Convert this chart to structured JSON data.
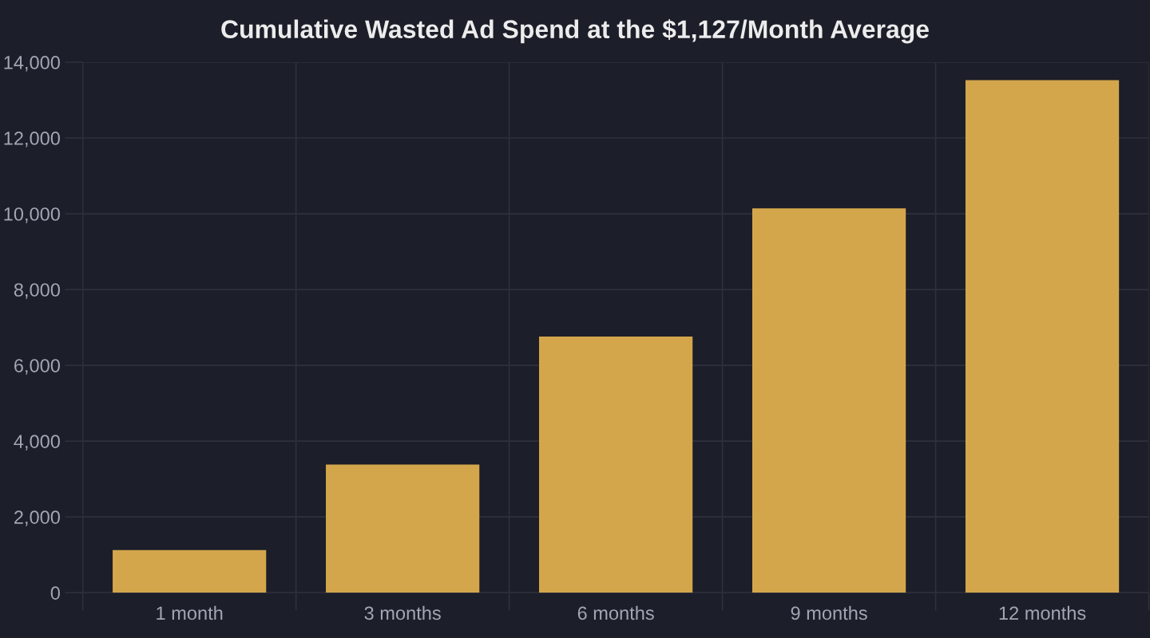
{
  "chart_data": {
    "type": "bar",
    "title": "Cumulative Wasted Ad Spend at the $1,127/Month Average",
    "categories": [
      "1 month",
      "3 months",
      "6 months",
      "9 months",
      "12 months"
    ],
    "values": [
      1127,
      3381,
      6762,
      10143,
      13524
    ],
    "color": "#d4a64c",
    "ylim": [
      0,
      14000
    ],
    "yticks": [
      {
        "value": 0,
        "label": "0"
      },
      {
        "value": 2000,
        "label": "2,000"
      },
      {
        "value": 4000,
        "label": "4,000"
      },
      {
        "value": 6000,
        "label": "6,000"
      },
      {
        "value": 8000,
        "label": "8,000"
      },
      {
        "value": 10000,
        "label": "10,000"
      },
      {
        "value": 12000,
        "label": "12,000"
      },
      {
        "value": 14000,
        "label": "14,000"
      }
    ],
    "grid": true,
    "legend": false
  }
}
